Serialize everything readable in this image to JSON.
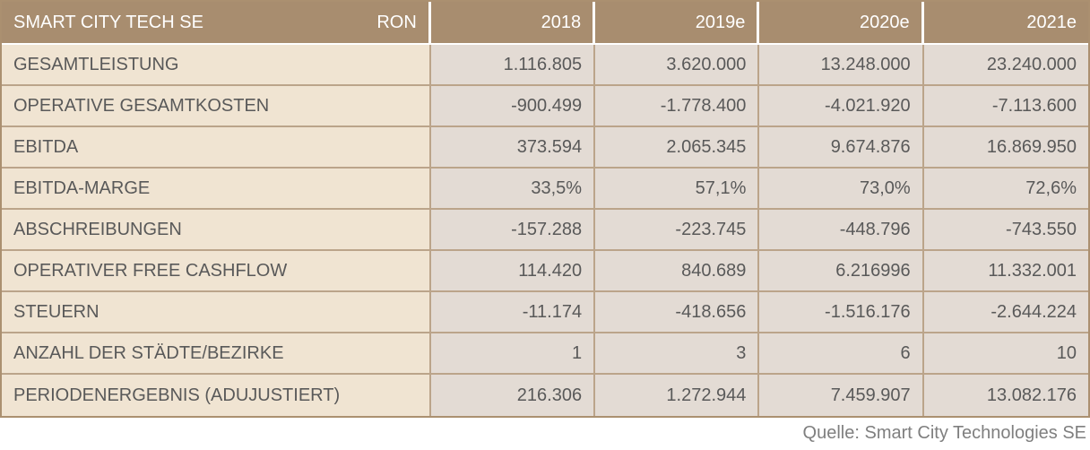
{
  "chart_data": {
    "type": "table",
    "title": "SMART CITY TECH SE",
    "unit": "RON",
    "columns": [
      "2018",
      "2019e",
      "2020e",
      "2021e"
    ],
    "rows": [
      {
        "label": "GESAMTLEISTUNG",
        "values": [
          "1.116.805",
          "3.620.000",
          "13.248.000",
          "23.240.000"
        ]
      },
      {
        "label": "OPERATIVE GESAMTKOSTEN",
        "values": [
          "-900.499",
          "-1.778.400",
          "-4.021.920",
          "-7.113.600"
        ]
      },
      {
        "label": "EBITDA",
        "values": [
          "373.594",
          "2.065.345",
          "9.674.876",
          "16.869.950"
        ]
      },
      {
        "label": "EBITDA-MARGE",
        "values": [
          "33,5%",
          "57,1%",
          "73,0%",
          "72,6%"
        ]
      },
      {
        "label": "ABSCHREIBUNGEN",
        "values": [
          "-157.288",
          "-223.745",
          "-448.796",
          "-743.550"
        ]
      },
      {
        "label": "OPERATIVER FREE CASHFLOW",
        "values": [
          "114.420",
          "840.689",
          "6.216996",
          "11.332.001"
        ]
      },
      {
        "label": "STEUERN",
        "values": [
          "-11.174",
          "-418.656",
          "-1.516.176",
          "-2.644.224"
        ]
      },
      {
        "label": "ANZAHL DER STÄDTE/BEZIRKE",
        "values": [
          "1",
          "3",
          "6",
          "10"
        ]
      },
      {
        "label": "PERIODENERGEBNIS (ADUJUSTIERT)",
        "values": [
          "216.306",
          "1.272.944",
          "7.459.907",
          "13.082.176"
        ]
      }
    ],
    "layout": {
      "legend": "none",
      "grid": "table-borders"
    }
  },
  "source_note": "Quelle: Smart City Technologies SE",
  "colors": {
    "header_bg": "#a88d6f",
    "label_column_bg": "#f0e4d2",
    "value_cell_bg": "#e3dbd4",
    "border": "#bba48a",
    "header_text": "#ffffff",
    "body_text": "#595959",
    "source_text": "#7f7f7f"
  }
}
